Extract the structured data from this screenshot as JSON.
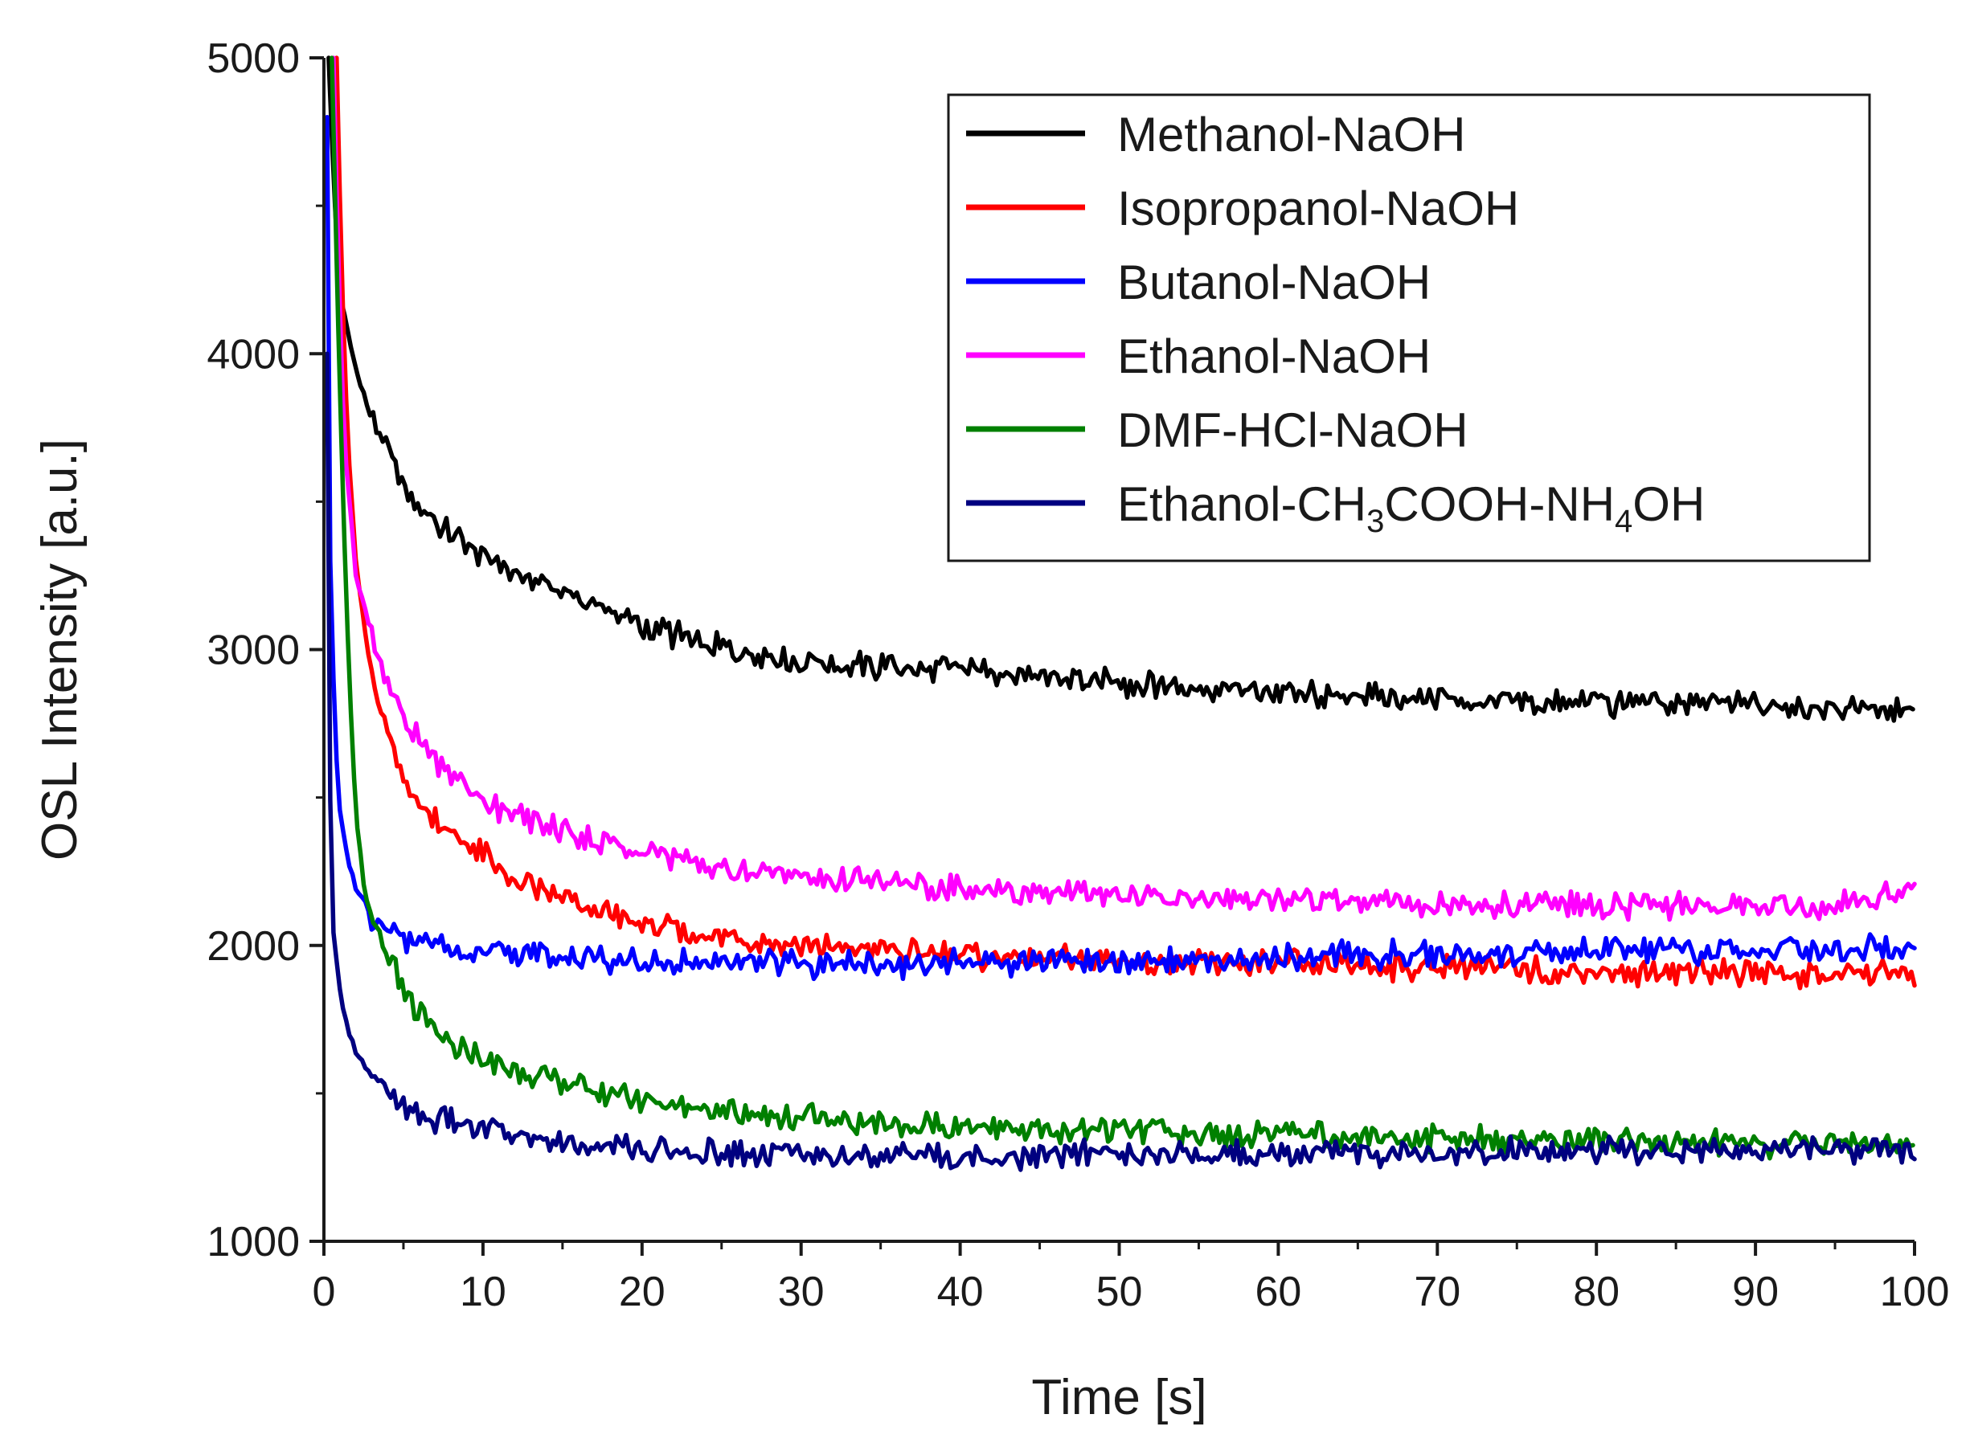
{
  "chart_data": {
    "type": "line",
    "title": "",
    "xlabel": "Time [s]",
    "ylabel": "OSL Intensity [a.u.]",
    "xlim": [
      0,
      100
    ],
    "ylim": [
      1000,
      5000
    ],
    "xticks": [
      0,
      10,
      20,
      30,
      40,
      50,
      60,
      70,
      80,
      90,
      100
    ],
    "yticks": [
      1000,
      2000,
      3000,
      4000,
      5000
    ],
    "xtick_labels": [
      "0",
      "10",
      "20",
      "30",
      "40",
      "50",
      "60",
      "70",
      "80",
      "90",
      "100"
    ],
    "ytick_labels": [
      "1000",
      "2000",
      "3000",
      "4000",
      "5000"
    ],
    "grid": false,
    "legend_position": "top-right",
    "series": [
      {
        "name": "Methanol-NaOH",
        "label_main": "Methanol-NaOH",
        "color": "#000000",
        "x": [
          0.3,
          0.6,
          1,
          2,
          3,
          4,
          5,
          6,
          8,
          10,
          12,
          15,
          18,
          20,
          25,
          30,
          35,
          40,
          45,
          50,
          55,
          60,
          65,
          70,
          75,
          80,
          85,
          90,
          95,
          100
        ],
        "y": [
          5000,
          4600,
          4200,
          3950,
          3780,
          3680,
          3560,
          3480,
          3400,
          3320,
          3260,
          3200,
          3130,
          3080,
          3000,
          2960,
          2940,
          2930,
          2910,
          2890,
          2870,
          2855,
          2845,
          2835,
          2825,
          2820,
          2815,
          2810,
          2800,
          2800
        ]
      },
      {
        "name": "Isopropanol-NaOH",
        "label_main": "Isopropanol-NaOH",
        "color": "#ff0000",
        "x": [
          0.8,
          1.1,
          1.5,
          2,
          3,
          4,
          5,
          6,
          8,
          10,
          12,
          15,
          18,
          20,
          25,
          30,
          35,
          40,
          45,
          50,
          55,
          60,
          65,
          70,
          75,
          80,
          85,
          90,
          95,
          100
        ],
        "y": [
          5000,
          4300,
          3700,
          3300,
          2900,
          2700,
          2580,
          2480,
          2380,
          2300,
          2220,
          2160,
          2110,
          2070,
          2020,
          2000,
          1980,
          1965,
          1955,
          1945,
          1940,
          1935,
          1930,
          1925,
          1920,
          1915,
          1910,
          1905,
          1900,
          1900
        ]
      },
      {
        "name": "Butanol-NaOH",
        "label_main": "Butanol-NaOH",
        "color": "#0000ff",
        "x": [
          0.2,
          0.4,
          0.7,
          1,
          1.5,
          2,
          3,
          4,
          5,
          6,
          8,
          10,
          15,
          20,
          25,
          30,
          35,
          40,
          45,
          50,
          55,
          60,
          65,
          70,
          75,
          80,
          85,
          90,
          95,
          100
        ],
        "y": [
          4800,
          3300,
          2700,
          2450,
          2300,
          2200,
          2100,
          2060,
          2030,
          2010,
          1990,
          1975,
          1955,
          1945,
          1935,
          1935,
          1935,
          1940,
          1945,
          1950,
          1955,
          1960,
          1965,
          1970,
          1975,
          1980,
          1985,
          1985,
          1985,
          1990
        ]
      },
      {
        "name": "Ethanol-NaOH",
        "label_main": "Ethanol-NaOH",
        "color": "#ff00ff",
        "x": [
          0.6,
          0.9,
          1.3,
          2,
          3,
          4,
          5,
          6,
          8,
          10,
          12,
          15,
          18,
          20,
          25,
          30,
          35,
          40,
          45,
          50,
          55,
          60,
          65,
          70,
          75,
          80,
          85,
          90,
          95,
          100
        ],
        "y": [
          5000,
          4300,
          3700,
          3250,
          3050,
          2900,
          2770,
          2680,
          2580,
          2500,
          2440,
          2390,
          2340,
          2320,
          2260,
          2230,
          2210,
          2190,
          2180,
          2170,
          2160,
          2150,
          2150,
          2140,
          2140,
          2135,
          2130,
          2130,
          2130,
          2200
        ]
      },
      {
        "name": "DMF-HCl-NaOH",
        "label_main": "DMF-HCl-NaOH",
        "color": "#008000",
        "x": [
          0.5,
          0.8,
          1.2,
          1.6,
          2,
          2.5,
          3,
          4,
          5,
          6,
          8,
          10,
          12,
          15,
          18,
          20,
          25,
          30,
          35,
          40,
          45,
          50,
          55,
          60,
          65,
          70,
          75,
          80,
          85,
          90,
          95,
          100
        ],
        "y": [
          5000,
          4300,
          3500,
          2900,
          2450,
          2200,
          2080,
          1980,
          1830,
          1770,
          1660,
          1610,
          1580,
          1540,
          1500,
          1480,
          1440,
          1420,
          1400,
          1390,
          1380,
          1370,
          1365,
          1360,
          1355,
          1350,
          1345,
          1340,
          1335,
          1330,
          1330,
          1320
        ]
      },
      {
        "name": "Ethanol-CH3COOH-NH4OH",
        "label_main": "Ethanol-CH",
        "label_sub1": "3",
        "label_mid": "COOH-NH",
        "label_sub2": "4",
        "label_end": "OH",
        "color": "#000080",
        "x": [
          0.2,
          0.35,
          0.6,
          1,
          1.5,
          2,
          3,
          4,
          5,
          6,
          8,
          10,
          12,
          15,
          18,
          20,
          25,
          30,
          35,
          40,
          45,
          50,
          55,
          60,
          65,
          70,
          75,
          80,
          85,
          90,
          95,
          100
        ],
        "y": [
          4000,
          2600,
          2050,
          1850,
          1720,
          1640,
          1550,
          1500,
          1460,
          1430,
          1400,
          1380,
          1360,
          1340,
          1320,
          1310,
          1300,
          1295,
          1290,
          1290,
          1290,
          1290,
          1295,
          1295,
          1300,
          1300,
          1305,
          1305,
          1305,
          1310,
          1310,
          1310
        ]
      }
    ]
  }
}
